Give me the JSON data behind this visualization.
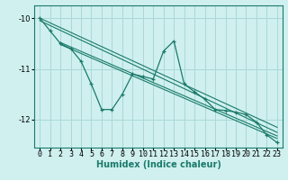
{
  "xlabel": "Humidex (Indice chaleur)",
  "ylabel": "",
  "bg_color": "#cff0ef",
  "grid_color": "#aad8d6",
  "line_color": "#1a7a6a",
  "xlim": [
    -0.5,
    23.5
  ],
  "ylim": [
    -12.55,
    -9.75
  ],
  "yticks": [
    -12,
    -11,
    -10
  ],
  "xticks": [
    0,
    1,
    2,
    3,
    4,
    5,
    6,
    7,
    8,
    9,
    10,
    11,
    12,
    13,
    14,
    15,
    16,
    17,
    18,
    19,
    20,
    21,
    22,
    23
  ],
  "main_series": [
    [
      0,
      -10.0
    ],
    [
      1,
      -10.25
    ],
    [
      2,
      -10.5
    ],
    [
      3,
      -10.6
    ],
    [
      4,
      -10.85
    ],
    [
      5,
      -11.3
    ],
    [
      6,
      -11.8
    ],
    [
      7,
      -11.8
    ],
    [
      8,
      -11.5
    ],
    [
      9,
      -11.1
    ],
    [
      10,
      -11.15
    ],
    [
      11,
      -11.2
    ],
    [
      12,
      -10.65
    ],
    [
      13,
      -10.45
    ],
    [
      14,
      -11.3
    ],
    [
      15,
      -11.45
    ],
    [
      16,
      -11.6
    ],
    [
      17,
      -11.8
    ],
    [
      18,
      -11.82
    ],
    [
      19,
      -11.85
    ],
    [
      20,
      -11.9
    ],
    [
      21,
      -12.05
    ],
    [
      22,
      -12.3
    ],
    [
      23,
      -12.45
    ]
  ],
  "trend_lines": [
    [
      [
        0,
        -10.0
      ],
      [
        23,
        -12.15
      ]
    ],
    [
      [
        0,
        -10.05
      ],
      [
        23,
        -12.25
      ]
    ],
    [
      [
        2,
        -10.48
      ],
      [
        23,
        -12.32
      ]
    ],
    [
      [
        2,
        -10.52
      ],
      [
        23,
        -12.37
      ]
    ]
  ]
}
